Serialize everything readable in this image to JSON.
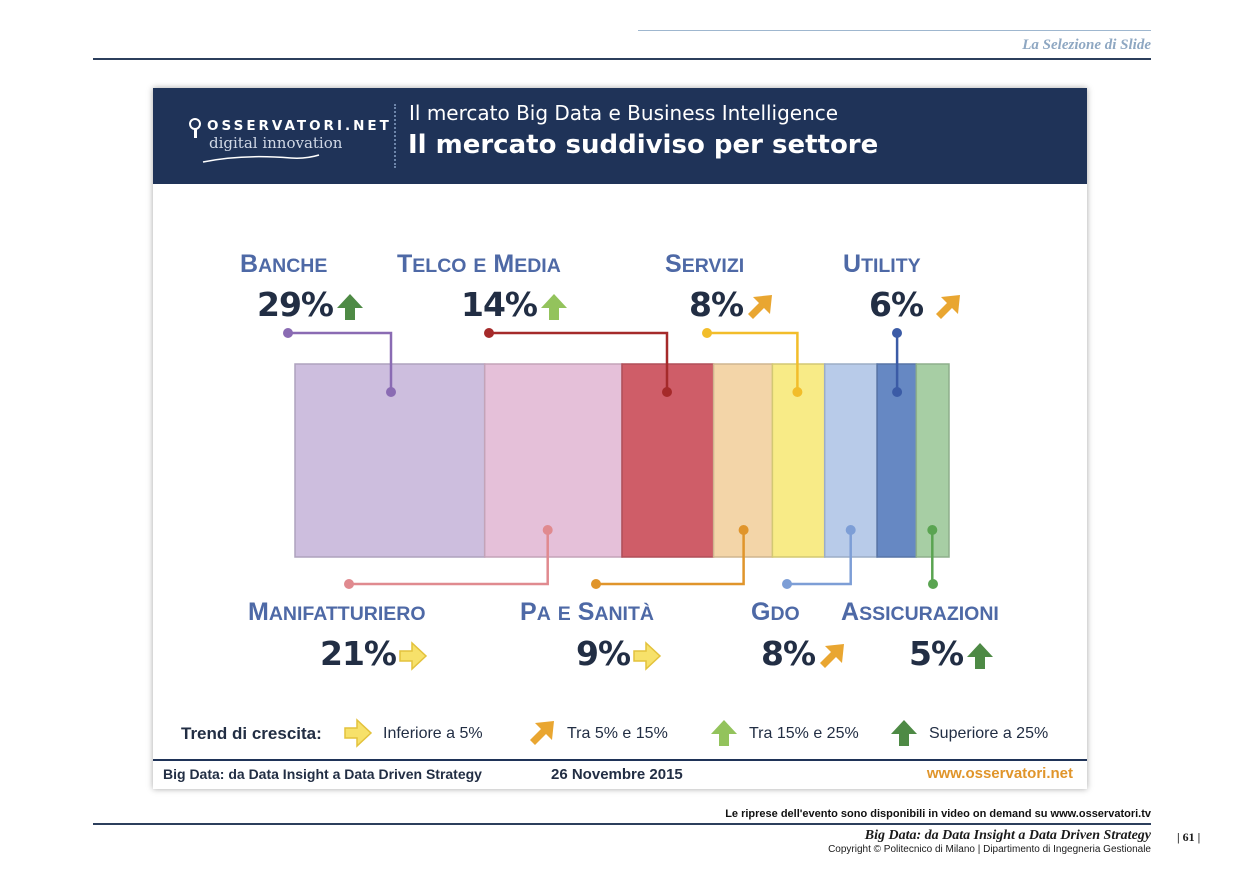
{
  "document": {
    "section_label": "La Selezione di Slide",
    "video_note": "Le riprese dell'evento sono disponibili in video on demand su www.osservatori.tv",
    "footer_title": "Big Data: da Data Insight a Data Driven Strategy",
    "copyright": "Copyright © Politecnico di Milano | Dipartimento di Ingegneria Gestionale",
    "page_number": "| 61 |"
  },
  "slide": {
    "logo_name": "OSSERVATORI.NET",
    "logo_tagline": "digital innovation",
    "subtitle": "Il mercato Big Data e Business Intelligence",
    "title": "Il mercato suddiviso per settore",
    "footer_left": "Big Data: da Data Insight a Data Driven Strategy",
    "footer_date": "26 Novembre 2015",
    "footer_url": "www.osservatori.net"
  },
  "legend": {
    "title": "Trend di crescita:",
    "items": [
      {
        "label": "Inferiore a 5%",
        "trend": "right",
        "color": "#f7e16a"
      },
      {
        "label": "Tra 5% e 15%",
        "trend": "diagonal",
        "color": "#e9a631"
      },
      {
        "label": "Tra 15% e 25%",
        "trend": "up",
        "color": "#93c35c"
      },
      {
        "label": "Superiore a 25%",
        "trend": "up",
        "color": "#4e8a45"
      }
    ]
  },
  "chart_data": {
    "type": "bar",
    "subtype": "stacked-100-percent-horizontal",
    "title": "Il mercato suddiviso per settore",
    "unit": "%",
    "categories": [
      "Banche",
      "Manifatturiero",
      "Telco e Media",
      "PA e Sanità",
      "Servizi",
      "GDO",
      "Utility",
      "Assicurazioni"
    ],
    "values": [
      29,
      21,
      14,
      9,
      8,
      8,
      6,
      5
    ],
    "labels": [
      "29%",
      "21%",
      "14%",
      "9%",
      "8%",
      "8%",
      "6%",
      "5%"
    ],
    "trends": [
      "superiore a 25%",
      "inferiore a 5%",
      "tra 15% e 25%",
      "inferiore a 5%",
      "tra 5% e 15%",
      "tra 5% e 15%",
      "tra 5% e 15%",
      "superiore a 25%"
    ],
    "colors": [
      "#cdbede",
      "#e5c0d9",
      "#cf5d68",
      "#f3d5a8",
      "#f8eb87",
      "#b8cbe9",
      "#6688c3",
      "#a7cea4"
    ]
  }
}
